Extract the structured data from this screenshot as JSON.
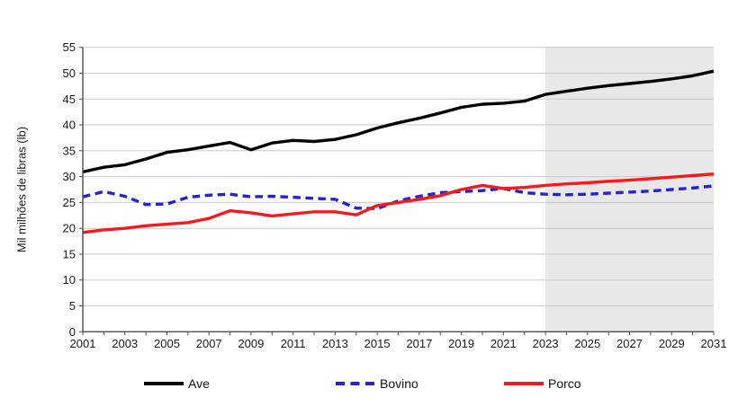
{
  "chart_data": {
    "type": "line",
    "title": "",
    "xlabel": "",
    "ylabel": "Mil milhões de libras (lb)",
    "xlim": [
      2001,
      2031
    ],
    "ylim": [
      0,
      55
    ],
    "y_ticks": [
      0,
      5,
      10,
      15,
      20,
      25,
      30,
      35,
      40,
      45,
      50,
      55
    ],
    "x_tick_labels": [
      2001,
      2003,
      2005,
      2007,
      2009,
      2011,
      2013,
      2015,
      2017,
      2019,
      2021,
      2023,
      2025,
      2027,
      2029,
      2031
    ],
    "grid": "horizontal",
    "grid_color": "#c9c9c9",
    "axis_color": "#4d4d4d",
    "legend_position": "bottom",
    "projection_region": {
      "from": 2023,
      "to": 2031,
      "color": "#e8e8e8"
    },
    "x": [
      2001,
      2002,
      2003,
      2004,
      2005,
      2006,
      2007,
      2008,
      2009,
      2010,
      2011,
      2012,
      2013,
      2014,
      2015,
      2016,
      2017,
      2018,
      2019,
      2020,
      2021,
      2022,
      2023,
      2024,
      2025,
      2026,
      2027,
      2028,
      2029,
      2030,
      2031
    ],
    "series": [
      {
        "name": "Ave",
        "color": "#000000",
        "style": "solid",
        "values": [
          30.9,
          31.8,
          32.3,
          33.4,
          34.7,
          35.2,
          35.9,
          36.6,
          35.2,
          36.5,
          37.0,
          36.8,
          37.2,
          38.1,
          39.4,
          40.4,
          41.3,
          42.3,
          43.4,
          44.0,
          44.2,
          44.6,
          45.9,
          46.5,
          47.1,
          47.6,
          48.0,
          48.4,
          48.9,
          49.5,
          50.4
        ]
      },
      {
        "name": "Bovino",
        "color": "#2222d6",
        "style": "dashed",
        "values": [
          26.1,
          27.1,
          26.2,
          24.6,
          24.7,
          26.0,
          26.4,
          26.6,
          26.1,
          26.2,
          26.0,
          25.8,
          25.6,
          23.9,
          23.8,
          25.3,
          26.2,
          26.9,
          27.1,
          27.3,
          27.7,
          26.9,
          26.6,
          26.5,
          26.6,
          26.8,
          27.0,
          27.2,
          27.5,
          27.8,
          28.2
        ]
      },
      {
        "name": "Porco",
        "color": "#f8191d",
        "style": "solid",
        "values": [
          19.2,
          19.7,
          20.0,
          20.5,
          20.8,
          21.1,
          21.9,
          23.4,
          23.0,
          22.4,
          22.8,
          23.2,
          23.2,
          22.6,
          24.4,
          25.0,
          25.6,
          26.3,
          27.5,
          28.3,
          27.7,
          27.9,
          28.3,
          28.6,
          28.8,
          29.1,
          29.3,
          29.6,
          29.9,
          30.2,
          30.5
        ]
      }
    ]
  }
}
